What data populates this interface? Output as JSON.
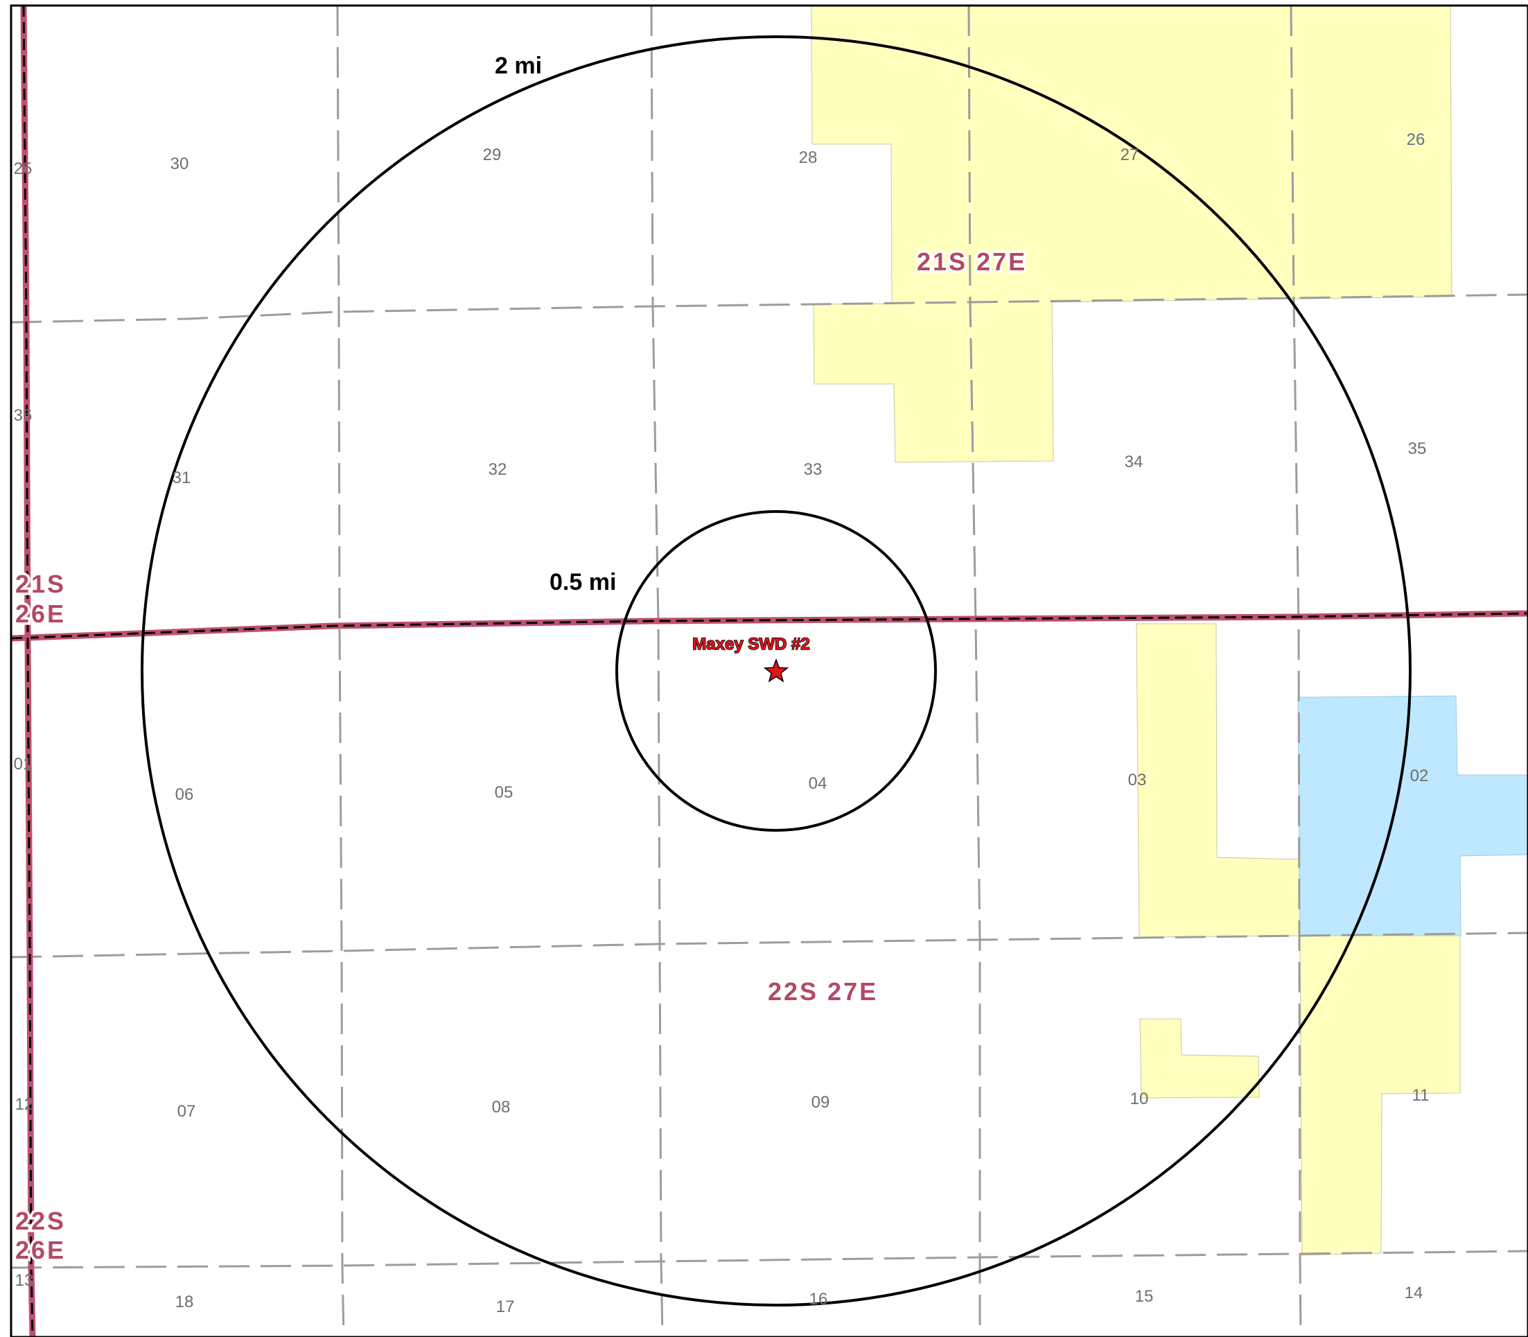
{
  "map": {
    "site": {
      "name": "Maxey SWD #2",
      "marker": "star-icon",
      "marker_color": "#e3121b"
    },
    "rings": [
      {
        "label": "2 mi",
        "radius_mi": 2
      },
      {
        "label": "0.5 mi",
        "radius_mi": 0.5
      }
    ],
    "townships": {
      "t21s27e": "21S 27E",
      "t22s27e": "22S 27E",
      "t21s26e_line1": "21S",
      "t21s26e_line2": "26E",
      "t22s26e_line1": "22S",
      "t22s26e_line2": "26E"
    },
    "sections": {
      "s25": "25",
      "s30": "30",
      "s29": "29",
      "s28": "28",
      "s27": "27",
      "s26": "26",
      "s36": "36",
      "s31": "31",
      "s32": "32",
      "s33": "33",
      "s34": "34",
      "s35": "35",
      "s01": "01",
      "s06": "06",
      "s05": "05",
      "s04": "04",
      "s03": "03",
      "s02": "02",
      "s12": "12",
      "s07": "07",
      "s08": "08",
      "s09": "09",
      "s10": "10",
      "s11": "11",
      "s13": "13",
      "s18": "18",
      "s17": "17",
      "s16": "16",
      "s15": "15",
      "s14": "14"
    },
    "colors": {
      "yellow_area": "#ffffbe",
      "blue_area": "#bee8ff",
      "township_line": "#c0506e",
      "section_line": "#9c9c9c"
    }
  }
}
